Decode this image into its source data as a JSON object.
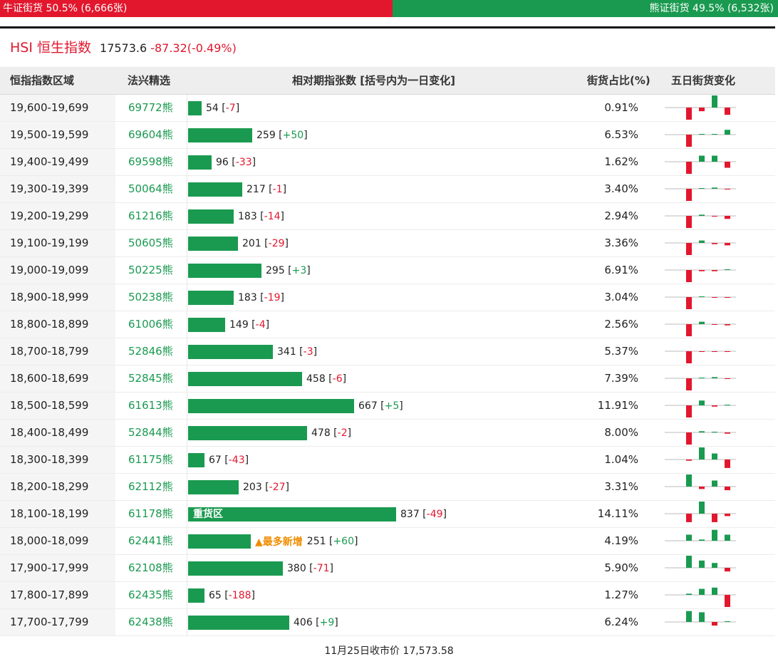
{
  "ratio_bar": {
    "bull_label": "牛证街货 50.5% (6,666张)",
    "bear_label": "熊证街货 49.5% (6,532张)",
    "bull_share": 50.5,
    "bull_color": "#e2172d",
    "bear_color": "#1a9a50"
  },
  "index": {
    "code": "HSI",
    "name": "恒生指数",
    "price": "17573.6",
    "change": "-87.32(-0.49%)"
  },
  "table": {
    "headers": {
      "range": "恒指指数区域",
      "pick": "法兴精选",
      "count": "相对期指张数 [括号内为一日变化]",
      "share": "街货占比(%)",
      "trend": "五日街货变化"
    },
    "max_count": 837,
    "rows": [
      {
        "range": "19,600-19,699",
        "code": "69772熊",
        "count": 54,
        "count_text": "54",
        "delta": "-7",
        "share": "0.91%",
        "trend": [
          -1,
          -0.3,
          1,
          -0.6
        ]
      },
      {
        "range": "19,500-19,599",
        "code": "69604熊",
        "count": 259,
        "count_text": "259",
        "delta": "+50",
        "share": "6.53%",
        "trend": [
          -1,
          0.05,
          0.05,
          0.4
        ]
      },
      {
        "range": "19,400-19,499",
        "code": "69598熊",
        "count": 96,
        "count_text": "96",
        "delta": "-33",
        "share": "1.62%",
        "trend": [
          -1,
          0.5,
          0.5,
          -0.5
        ]
      },
      {
        "range": "19,300-19,399",
        "code": "50064熊",
        "count": 217,
        "count_text": "217",
        "delta": "-1",
        "share": "3.40%",
        "trend": [
          -1,
          0.05,
          0.1,
          -0.05
        ]
      },
      {
        "range": "19,200-19,299",
        "code": "61216熊",
        "count": 183,
        "count_text": "183",
        "delta": "-14",
        "share": "2.94%",
        "trend": [
          -1,
          0.1,
          -0.02,
          -0.25
        ]
      },
      {
        "range": "19,100-19,199",
        "code": "50605熊",
        "count": 201,
        "count_text": "201",
        "delta": "-29",
        "share": "3.36%",
        "trend": [
          -1,
          0.2,
          -0.1,
          -0.2
        ]
      },
      {
        "range": "19,000-19,099",
        "code": "50225熊",
        "count": 295,
        "count_text": "295",
        "delta": "+3",
        "share": "6.91%",
        "trend": [
          -1,
          -0.1,
          -0.1,
          0.05
        ]
      },
      {
        "range": "18,900-18,999",
        "code": "50238熊",
        "count": 183,
        "count_text": "183",
        "delta": "-19",
        "share": "3.04%",
        "trend": [
          -1,
          0.05,
          -0.05,
          -0.05
        ]
      },
      {
        "range": "18,800-18,899",
        "code": "61006熊",
        "count": 149,
        "count_text": "149",
        "delta": "-4",
        "share": "2.56%",
        "trend": [
          -1,
          0.2,
          -0.05,
          -0.1
        ]
      },
      {
        "range": "18,700-18,799",
        "code": "52846熊",
        "count": 341,
        "count_text": "341",
        "delta": "-3",
        "share": "5.37%",
        "trend": [
          -1,
          -0.05,
          -0.05,
          -0.05
        ]
      },
      {
        "range": "18,600-18,699",
        "code": "52845熊",
        "count": 458,
        "count_text": "458",
        "delta": "-6",
        "share": "7.39%",
        "trend": [
          -1,
          0.05,
          0.1,
          -0.05
        ]
      },
      {
        "range": "18,500-18,599",
        "code": "61613熊",
        "count": 667,
        "count_text": "667",
        "delta": "+5",
        "share": "11.91%",
        "trend": [
          -1,
          0.4,
          -0.1,
          0.05
        ]
      },
      {
        "range": "18,400-18,499",
        "code": "52844熊",
        "count": 478,
        "count_text": "478",
        "delta": "-2",
        "share": "8.00%",
        "trend": [
          -1,
          0.1,
          0.05,
          -0.1
        ]
      },
      {
        "range": "18,300-18,399",
        "code": "61175熊",
        "count": 67,
        "count_text": "67",
        "delta": "-43",
        "share": "1.04%",
        "trend": [
          -0.1,
          1,
          0.5,
          -0.7
        ]
      },
      {
        "range": "18,200-18,299",
        "code": "62112熊",
        "count": 203,
        "count_text": "203",
        "delta": "-27",
        "share": "3.31%",
        "trend": [
          1,
          -0.2,
          0.5,
          -0.3
        ]
      },
      {
        "range": "18,100-18,199",
        "code": "61178熊",
        "count": 837,
        "count_text": "837",
        "delta": "-49",
        "share": "14.11%",
        "heavy_tag": "重货区",
        "trend": [
          -0.7,
          1,
          -0.7,
          -0.2
        ]
      },
      {
        "range": "18,000-18,099",
        "code": "62441熊",
        "count": 251,
        "count_text": "251",
        "delta": "+60",
        "share": "4.19%",
        "flag": "▲最多新增",
        "trend": [
          0.5,
          0.1,
          0.9,
          0.5
        ]
      },
      {
        "range": "17,900-17,999",
        "code": "62108熊",
        "count": 380,
        "count_text": "380",
        "delta": "-71",
        "share": "5.90%",
        "trend": [
          1,
          0.6,
          0.4,
          -0.3
        ]
      },
      {
        "range": "17,800-17,899",
        "code": "62435熊",
        "count": 65,
        "count_text": "65",
        "delta": "-188",
        "share": "1.27%",
        "trend": [
          0.1,
          0.5,
          0.6,
          -1
        ]
      },
      {
        "range": "17,700-17,799",
        "code": "62438熊",
        "count": 406,
        "count_text": "406",
        "delta": "+9",
        "share": "6.24%",
        "trend": [
          0.9,
          0.8,
          -0.3,
          0.05
        ]
      }
    ]
  },
  "footer": {
    "text": "11月25日收市价 17,573.58"
  }
}
